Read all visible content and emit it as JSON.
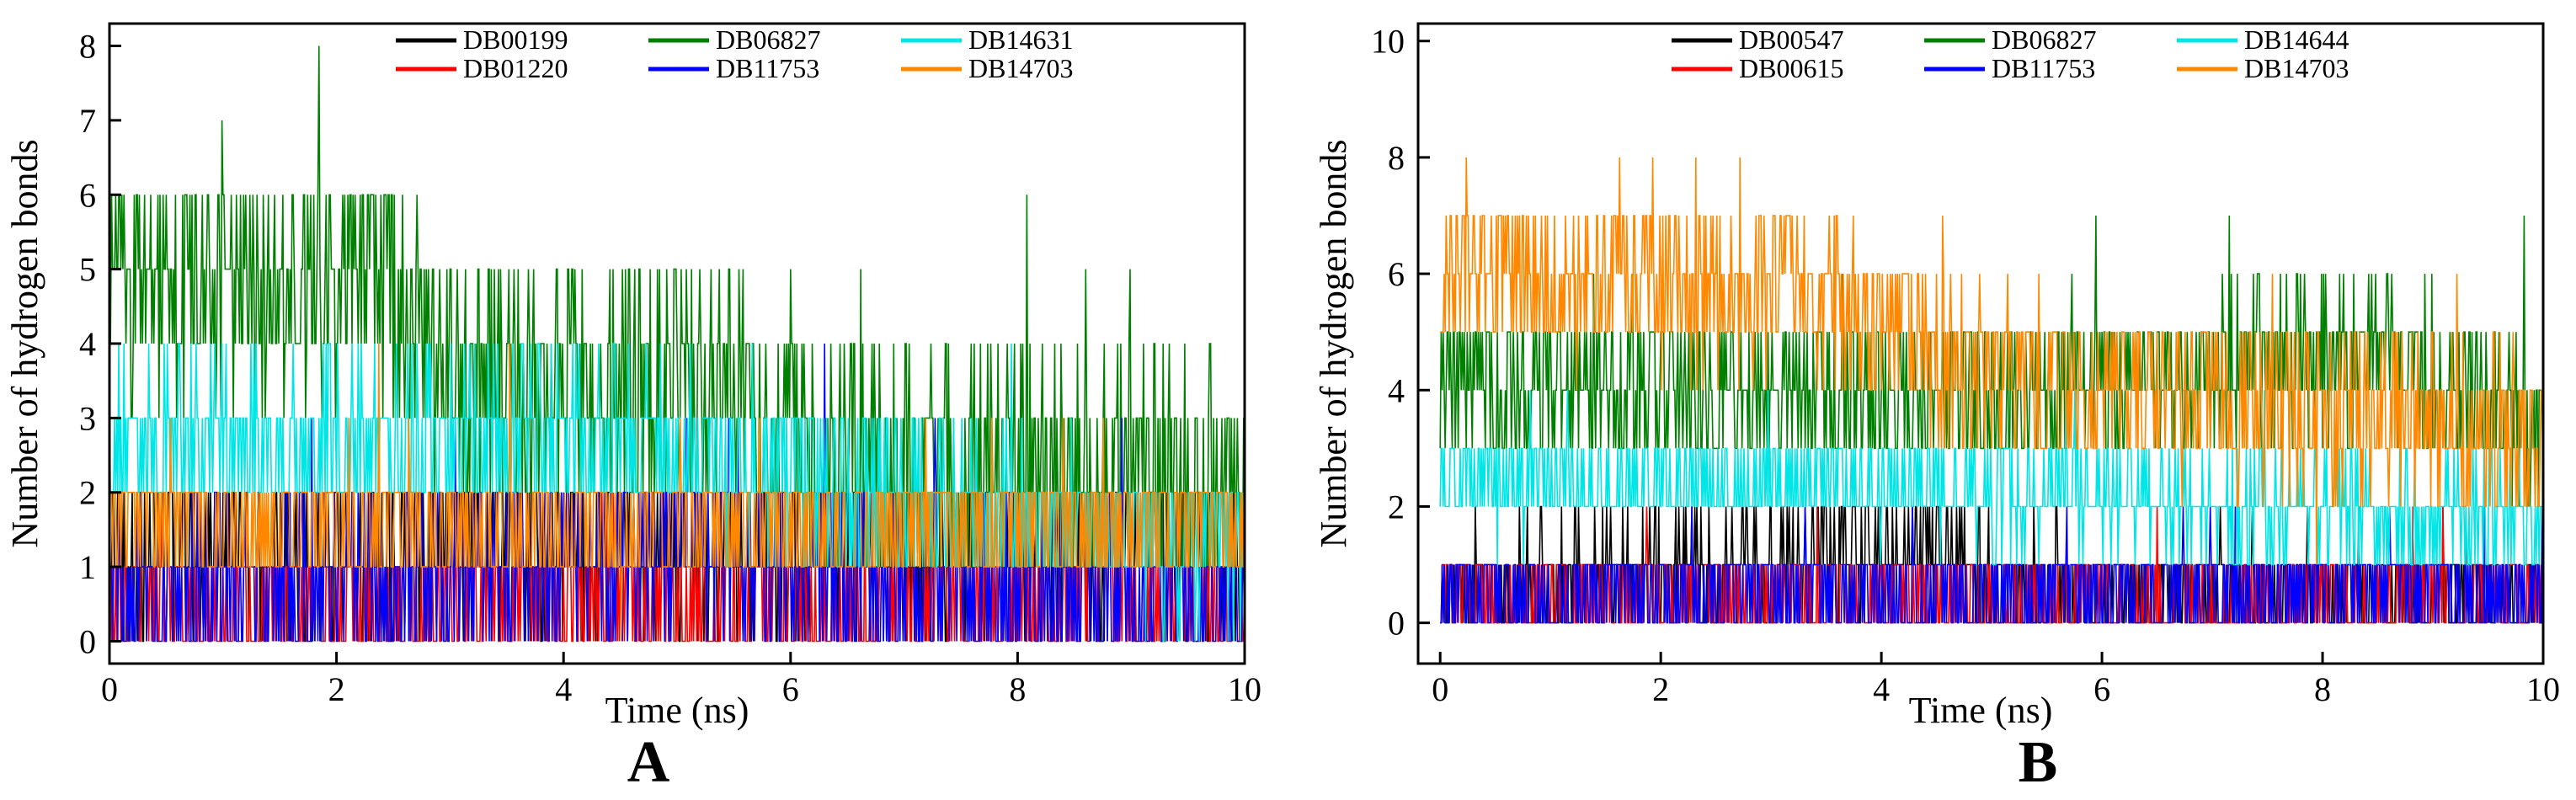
{
  "chart_data": [
    {
      "type": "line",
      "panel_label": "A",
      "xlabel": "Time (ns)",
      "ylabel": "Number of hydrogen bonds",
      "xlim": [
        0,
        10
      ],
      "ylim": [
        -0.3,
        8.3
      ],
      "xticks": [
        0,
        2,
        4,
        6,
        8,
        10
      ],
      "yticks": [
        0,
        1,
        2,
        3,
        4,
        5,
        6,
        7,
        8
      ],
      "legend_position": "top",
      "series": [
        {
          "name": "DB00199",
          "color": "#000000",
          "baseline": 1.2,
          "spread": 1.0,
          "min": 0,
          "max": 2,
          "trend": [
            [
              0,
              1.2
            ],
            [
              10,
              1.2
            ]
          ]
        },
        {
          "name": "DB01220",
          "color": "#ff0000",
          "baseline": 0.5,
          "spread": 0.6,
          "min": 0,
          "max": 2,
          "trend": [
            [
              0,
              0.5
            ],
            [
              10,
              0.5
            ]
          ]
        },
        {
          "name": "DB06827",
          "color": "#008000",
          "baseline": 4.5,
          "spread": 1.6,
          "min": 0,
          "max": 8,
          "trend": [
            [
              0,
              5.0
            ],
            [
              2.5,
              4.8
            ],
            [
              3.0,
              3.2
            ],
            [
              5.0,
              3.6
            ],
            [
              6.0,
              3.0
            ],
            [
              6.3,
              2.2
            ],
            [
              10,
              2.2
            ]
          ]
        },
        {
          "name": "DB11753",
          "color": "#0000ff",
          "baseline": 0.5,
          "spread": 0.9,
          "min": 0,
          "max": 4,
          "trend": [
            [
              0,
              0.6
            ],
            [
              5.0,
              1.2
            ],
            [
              6.5,
              0.8
            ],
            [
              10,
              0.6
            ]
          ]
        },
        {
          "name": "DB14631",
          "color": "#00e5e5",
          "baseline": 2.3,
          "spread": 1.0,
          "min": 0,
          "max": 4,
          "trend": [
            [
              0,
              2.6
            ],
            [
              4.0,
              2.8
            ],
            [
              6.0,
              2.2
            ],
            [
              10,
              1.2
            ]
          ]
        },
        {
          "name": "DB14703",
          "color": "#ff8800",
          "baseline": 1.6,
          "spread": 0.9,
          "min": 0,
          "max": 4,
          "trend": [
            [
              0,
              1.6
            ],
            [
              6.0,
              1.4
            ],
            [
              10,
              1.6
            ]
          ]
        }
      ]
    },
    {
      "type": "line",
      "panel_label": "B",
      "xlabel": "Time (ns)",
      "ylabel": "Number of hydrogen bonds",
      "xlim": [
        -0.2,
        10
      ],
      "ylim": [
        -0.7,
        10.3
      ],
      "xticks": [
        0,
        2,
        4,
        6,
        8,
        10
      ],
      "yticks": [
        0,
        2,
        4,
        6,
        8,
        10
      ],
      "legend_position": "top",
      "series": [
        {
          "name": "DB00547",
          "color": "#000000",
          "baseline": 0.8,
          "spread": 0.9,
          "min": 0,
          "max": 2,
          "trend": [
            [
              0,
              0.6
            ],
            [
              3.2,
              1.0
            ],
            [
              4.6,
              1.4
            ],
            [
              5.0,
              0.6
            ],
            [
              10,
              0.6
            ]
          ]
        },
        {
          "name": "DB00615",
          "color": "#ff0000",
          "baseline": 0.4,
          "spread": 0.7,
          "min": 0,
          "max": 2,
          "trend": [
            [
              0,
              0.4
            ],
            [
              10,
              0.4
            ]
          ]
        },
        {
          "name": "DB06827",
          "color": "#008000",
          "baseline": 3.8,
          "spread": 1.3,
          "min": 0,
          "max": 8,
          "trend": [
            [
              0,
              4.2
            ],
            [
              5.0,
              3.8
            ],
            [
              8.5,
              4.6
            ],
            [
              9.3,
              4.0
            ],
            [
              10,
              3.2
            ]
          ]
        },
        {
          "name": "DB11753",
          "color": "#0000ff",
          "baseline": 0.5,
          "spread": 0.7,
          "min": 0,
          "max": 2,
          "trend": [
            [
              0,
              0.5
            ],
            [
              10,
              0.5
            ]
          ]
        },
        {
          "name": "DB14644",
          "color": "#00e5e5",
          "baseline": 2.4,
          "spread": 0.8,
          "min": 0,
          "max": 4,
          "trend": [
            [
              0,
              2.5
            ],
            [
              5.0,
              2.2
            ],
            [
              10,
              1.8
            ]
          ]
        },
        {
          "name": "DB14703",
          "color": "#ff8800",
          "baseline": 5.2,
          "spread": 1.4,
          "min": 1,
          "max": 10,
          "trend": [
            [
              0,
              6.2
            ],
            [
              3.5,
              5.6
            ],
            [
              5.0,
              4.2
            ],
            [
              10,
              3.2
            ]
          ]
        }
      ]
    }
  ]
}
